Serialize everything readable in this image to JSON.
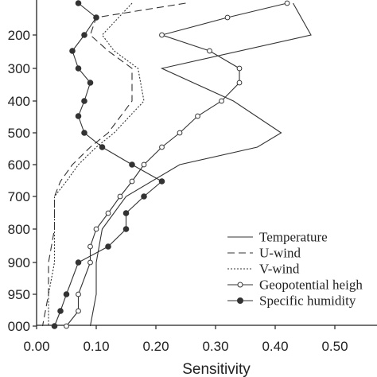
{
  "chart_data": {
    "type": "line",
    "xlabel": "Sensitivity",
    "ylabel": "",
    "xlim": [
      0,
      0.55
    ],
    "x_ticks": [
      "0.00",
      "0.10",
      "0.20",
      "0.30",
      "0.40",
      "0.50"
    ],
    "y_ticks": [
      "200",
      "300",
      "400",
      "500",
      "600",
      "700",
      "800",
      "900",
      "950",
      "000"
    ],
    "legend_position": "bottom-right",
    "series": [
      {
        "name": "Temperature",
        "style": "solid",
        "marker": "none",
        "points": [
          {
            "level": "top",
            "x": 0.43
          },
          {
            "level": "200",
            "x": 0.46
          },
          {
            "level": "300",
            "x": 0.21
          },
          {
            "level": "400",
            "x": 0.33
          },
          {
            "level": "500",
            "x": 0.41
          },
          {
            "level": "550",
            "x": 0.37
          },
          {
            "level": "600",
            "x": 0.24
          },
          {
            "level": "700",
            "x": 0.15
          },
          {
            "level": "800",
            "x": 0.11
          },
          {
            "level": "900",
            "x": 0.1
          },
          {
            "level": "950",
            "x": 0.1
          },
          {
            "level": "000",
            "x": 0.09
          }
        ]
      },
      {
        "name": "U-wind",
        "style": "dashed",
        "marker": "none",
        "points": [
          {
            "level": "top",
            "x": 0.25
          },
          {
            "level": "150",
            "x": 0.1
          },
          {
            "level": "200",
            "x": 0.09
          },
          {
            "level": "250",
            "x": 0.12
          },
          {
            "level": "300",
            "x": 0.16
          },
          {
            "level": "400",
            "x": 0.16
          },
          {
            "level": "500",
            "x": 0.12
          },
          {
            "level": "550",
            "x": 0.09
          },
          {
            "level": "600",
            "x": 0.06
          },
          {
            "level": "650",
            "x": 0.04
          },
          {
            "level": "700",
            "x": 0.03
          },
          {
            "level": "800",
            "x": 0.03
          },
          {
            "level": "900",
            "x": 0.02
          },
          {
            "level": "950",
            "x": 0.02
          },
          {
            "level": "000",
            "x": 0.01
          }
        ]
      },
      {
        "name": "V-wind",
        "style": "dotted",
        "marker": "none",
        "points": [
          {
            "level": "top",
            "x": 0.16
          },
          {
            "level": "200",
            "x": 0.11
          },
          {
            "level": "250",
            "x": 0.13
          },
          {
            "level": "300",
            "x": 0.17
          },
          {
            "level": "400",
            "x": 0.18
          },
          {
            "level": "500",
            "x": 0.13
          },
          {
            "level": "550",
            "x": 0.1
          },
          {
            "level": "600",
            "x": 0.07
          },
          {
            "level": "650",
            "x": 0.05
          },
          {
            "level": "700",
            "x": 0.03
          },
          {
            "level": "800",
            "x": 0.03
          },
          {
            "level": "900",
            "x": 0.03
          },
          {
            "level": "950",
            "x": 0.02
          },
          {
            "level": "000",
            "x": 0.02
          }
        ]
      },
      {
        "name": "Geopotential heigh",
        "style": "solid",
        "marker": "open-circle",
        "points": [
          {
            "level": "top",
            "x": 0.42
          },
          {
            "level": "150",
            "x": 0.32
          },
          {
            "level": "200",
            "x": 0.21
          },
          {
            "level": "250",
            "x": 0.29
          },
          {
            "level": "300",
            "x": 0.34
          },
          {
            "level": "350",
            "x": 0.34
          },
          {
            "level": "400",
            "x": 0.31
          },
          {
            "level": "450",
            "x": 0.27
          },
          {
            "level": "500",
            "x": 0.24
          },
          {
            "level": "550",
            "x": 0.21
          },
          {
            "level": "600",
            "x": 0.18
          },
          {
            "level": "650",
            "x": 0.16
          },
          {
            "level": "700",
            "x": 0.14
          },
          {
            "level": "750",
            "x": 0.12
          },
          {
            "level": "800",
            "x": 0.1
          },
          {
            "level": "850",
            "x": 0.09
          },
          {
            "level": "900",
            "x": 0.09
          },
          {
            "level": "950",
            "x": 0.07
          },
          {
            "level": "975",
            "x": 0.07
          },
          {
            "level": "000",
            "x": 0.05
          }
        ]
      },
      {
        "name": "Specific humidity",
        "style": "solid",
        "marker": "filled-circle",
        "points": [
          {
            "level": "top",
            "x": 0.07
          },
          {
            "level": "150",
            "x": 0.1
          },
          {
            "level": "200",
            "x": 0.08
          },
          {
            "level": "250",
            "x": 0.06
          },
          {
            "level": "300",
            "x": 0.07
          },
          {
            "level": "350",
            "x": 0.09
          },
          {
            "level": "400",
            "x": 0.08
          },
          {
            "level": "450",
            "x": 0.07
          },
          {
            "level": "500",
            "x": 0.08
          },
          {
            "level": "550",
            "x": 0.11
          },
          {
            "level": "600",
            "x": 0.16
          },
          {
            "level": "650",
            "x": 0.21
          },
          {
            "level": "700",
            "x": 0.18
          },
          {
            "level": "750",
            "x": 0.15
          },
          {
            "level": "800",
            "x": 0.15
          },
          {
            "level": "850",
            "x": 0.12
          },
          {
            "level": "900",
            "x": 0.07
          },
          {
            "level": "950",
            "x": 0.05
          },
          {
            "level": "975",
            "x": 0.04
          },
          {
            "level": "000",
            "x": 0.03
          }
        ]
      }
    ]
  }
}
